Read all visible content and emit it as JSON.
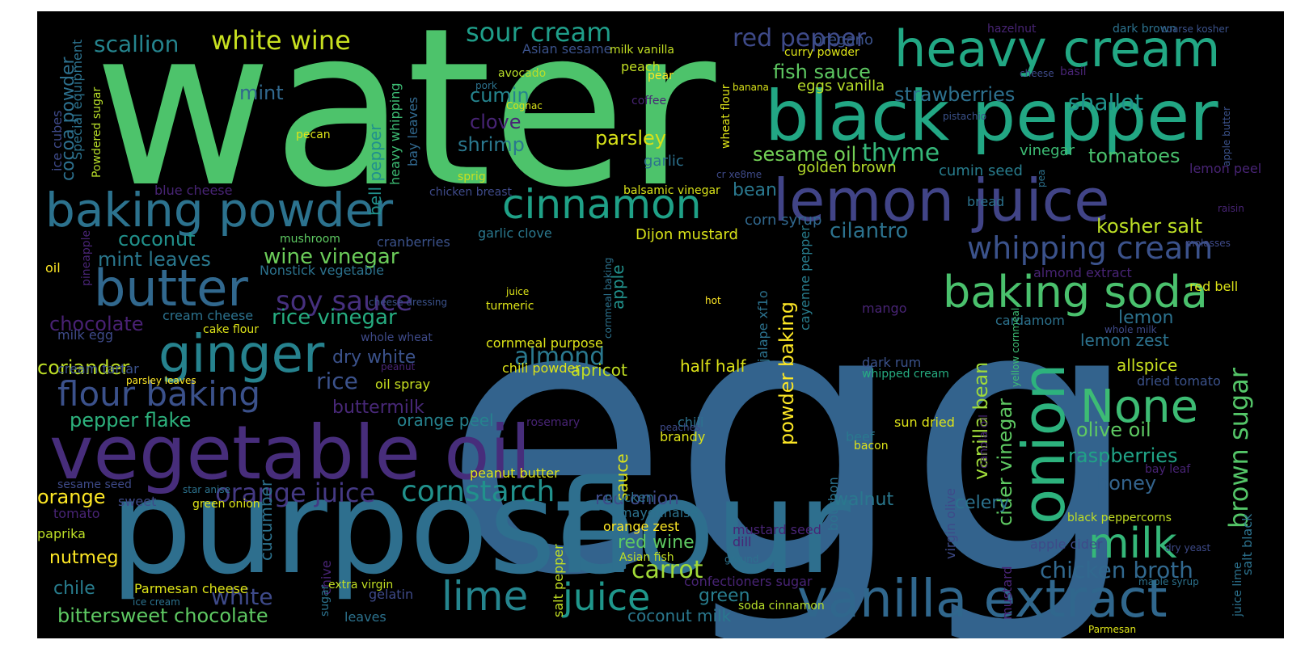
{
  "wordcloud": {
    "words": [
      {
        "text": "water",
        "color": "#4dc36b"
      },
      {
        "text": "egg",
        "color": "#33638d"
      },
      {
        "text": "purpose",
        "color": "#2e6f8e"
      },
      {
        "text": "flour",
        "color": "#2e6f8e"
      },
      {
        "text": "black pepper",
        "color": "#22a784"
      },
      {
        "text": "heavy cream",
        "color": "#22a884"
      },
      {
        "text": "lemon juice",
        "color": "#414487"
      },
      {
        "text": "vegetable oil",
        "color": "#472d7b"
      },
      {
        "text": "vanilla extract",
        "color": "#30678d"
      },
      {
        "text": "baking powder",
        "color": "#2c728e"
      },
      {
        "text": "cinnamon",
        "color": "#1fa187"
      },
      {
        "text": "baking soda",
        "color": "#4ac16d"
      },
      {
        "text": "onion",
        "color": "#2db27d"
      },
      {
        "text": "butter",
        "color": "#31688e"
      },
      {
        "text": "ginger",
        "color": "#26828e"
      },
      {
        "text": "milk",
        "color": "#35b779"
      },
      {
        "text": "None",
        "color": "#3dbc74"
      },
      {
        "text": "lime",
        "color": "#25858e"
      },
      {
        "text": "juice",
        "color": "#1f978b"
      },
      {
        "text": "flour baking",
        "color": "#3b518b"
      },
      {
        "text": "whipping cream",
        "color": "#3b528b"
      },
      {
        "text": "cornstarch",
        "color": "#21918c"
      },
      {
        "text": "soy sauce",
        "color": "#46307e"
      },
      {
        "text": "orange juice",
        "color": "#443983"
      },
      {
        "text": "sour cream",
        "color": "#1f9e89"
      },
      {
        "text": "white wine",
        "color": "#c8e020"
      },
      {
        "text": "red pepper",
        "color": "#3e4a89"
      },
      {
        "text": "brown sugar",
        "color": "#54c568"
      },
      {
        "text": "scallion",
        "color": "#25848e"
      },
      {
        "text": "thyme",
        "color": "#35b779"
      },
      {
        "text": "almond",
        "color": "#2a788e"
      },
      {
        "text": "carrot",
        "color": "#a2da37"
      },
      {
        "text": "fish sauce",
        "color": "#5ec962"
      },
      {
        "text": "shallot",
        "color": "#20938c"
      },
      {
        "text": "bittersweet chocolate",
        "color": "#5ec962"
      },
      {
        "text": "white",
        "color": "#3e4a89"
      },
      {
        "text": "chicken broth",
        "color": "#31688e"
      },
      {
        "text": "olive oil",
        "color": "#5ec962"
      },
      {
        "text": "cilantro",
        "color": "#2c728e"
      },
      {
        "text": "rice vinegar",
        "color": "#26ad81"
      },
      {
        "text": "wine vinegar",
        "color": "#6ccd5a"
      },
      {
        "text": "sesame oil",
        "color": "#73d056"
      },
      {
        "text": "strawberries",
        "color": "#2d708e"
      },
      {
        "text": "tomatoes",
        "color": "#4ac16d"
      },
      {
        "text": "powder baking",
        "color": "#fde725"
      },
      {
        "text": "cider vinegar",
        "color": "#5ec962"
      },
      {
        "text": "vanilla bean",
        "color": "#9fda3a"
      },
      {
        "text": "kosher salt",
        "color": "#bddf26"
      },
      {
        "text": "raspberries",
        "color": "#20a386"
      },
      {
        "text": "honey",
        "color": "#33638d"
      },
      {
        "text": "rice",
        "color": "#3b528b"
      },
      {
        "text": "chocolate",
        "color": "#482173"
      },
      {
        "text": "dry white",
        "color": "#3b528b"
      },
      {
        "text": "parsley",
        "color": "#d8e219"
      },
      {
        "text": "shrimp",
        "color": "#2a788e"
      },
      {
        "text": "cumin",
        "color": "#25848e"
      },
      {
        "text": "clove",
        "color": "#482475"
      },
      {
        "text": "mint",
        "color": "#31688e"
      },
      {
        "text": "coconut",
        "color": "#21918c"
      },
      {
        "text": "mint leaves",
        "color": "#2a788e"
      },
      {
        "text": "pepper flake",
        "color": "#2db27d"
      },
      {
        "text": "coriander",
        "color": "#bddf26"
      },
      {
        "text": "orange",
        "color": "#fde725"
      },
      {
        "text": "nutmeg",
        "color": "#fde725"
      },
      {
        "text": "chile",
        "color": "#287d8e"
      },
      {
        "text": "buttermilk",
        "color": "#482878"
      },
      {
        "text": "orange peel",
        "color": "#26828e"
      },
      {
        "text": "red onion",
        "color": "#3e4a89"
      },
      {
        "text": "walnut",
        "color": "#2a788e"
      },
      {
        "text": "red wine",
        "color": "#5ec962"
      },
      {
        "text": "green",
        "color": "#287d8e"
      },
      {
        "text": "coconut milk",
        "color": "#2a788e"
      },
      {
        "text": "half half",
        "color": "#dde318"
      },
      {
        "text": "apricot",
        "color": "#c2df23"
      },
      {
        "text": "bean",
        "color": "#2a788e"
      },
      {
        "text": "celery",
        "color": "#2c728e"
      },
      {
        "text": "lemon",
        "color": "#2c728e"
      },
      {
        "text": "lemon zest",
        "color": "#2c728e"
      },
      {
        "text": "allspice",
        "color": "#c8e020"
      },
      {
        "text": "cocoa powder",
        "color": "#2d708e"
      },
      {
        "text": "bell pepper",
        "color": "#21918c"
      },
      {
        "text": "apple",
        "color": "#21918c"
      },
      {
        "text": "oregano",
        "color": "#3b528b"
      },
      {
        "text": "garlic",
        "color": "#2c728e"
      },
      {
        "text": "eggs vanilla",
        "color": "#b8de29"
      },
      {
        "text": "corn syrup",
        "color": "#31688e"
      },
      {
        "text": "Dijon mustard",
        "color": "#d8e219"
      },
      {
        "text": "golden brown",
        "color": "#b5de2b"
      },
      {
        "text": "cumin seed",
        "color": "#287d8e"
      },
      {
        "text": "vinegar",
        "color": "#3dbc74"
      },
      {
        "text": "lemon peel",
        "color": "#482475"
      },
      {
        "text": "cardamom",
        "color": "#2c728e"
      },
      {
        "text": "dark rum",
        "color": "#3b528b"
      },
      {
        "text": "whipped cream",
        "color": "#26ad81"
      },
      {
        "text": "cream cheese",
        "color": "#2c728e"
      },
      {
        "text": "milk egg",
        "color": "#3e4a89"
      },
      {
        "text": "cream tartar",
        "color": "#3b528b"
      },
      {
        "text": "whole wheat",
        "color": "#3e4a89"
      },
      {
        "text": "chili powder",
        "color": "#dde318"
      },
      {
        "text": "oil spray",
        "color": "#c8e020"
      },
      {
        "text": "turmeric",
        "color": "#dde318"
      },
      {
        "text": "juice",
        "color": "#dde318"
      },
      {
        "text": "cranberries",
        "color": "#3b528b"
      },
      {
        "text": "garlic clove",
        "color": "#2a788e"
      },
      {
        "text": "mushroom",
        "color": "#5ec962"
      },
      {
        "text": "cake flour",
        "color": "#dde318"
      },
      {
        "text": "oil",
        "color": "#fde725"
      },
      {
        "text": "Nonstick vegetable",
        "color": "#2c728e"
      },
      {
        "text": "blue cheese",
        "color": "#482475"
      },
      {
        "text": "chicken breast",
        "color": "#3e4a89"
      },
      {
        "text": "balsamic vinegar",
        "color": "#d8e219"
      },
      {
        "text": "sprig",
        "color": "#c8e020"
      },
      {
        "text": "heavy whipping",
        "color": "#3dbc74"
      },
      {
        "text": "bay leaves",
        "color": "#31688e"
      },
      {
        "text": "ice cubes",
        "color": "#3e4a89"
      },
      {
        "text": "Special equipment",
        "color": "#2c728e"
      },
      {
        "text": "Powdered sugar",
        "color": "#b8de29"
      },
      {
        "text": "pecan",
        "color": "#dde318"
      },
      {
        "text": "avocado",
        "color": "#b8de29"
      },
      {
        "text": "pork",
        "color": "#2c728e"
      },
      {
        "text": "Cognac",
        "color": "#d8e219"
      },
      {
        "text": "Asian sesame",
        "color": "#3b528b"
      },
      {
        "text": "milk vanilla",
        "color": "#c2df23"
      },
      {
        "text": "peach",
        "color": "#c2df23"
      },
      {
        "text": "pear",
        "color": "#fde725"
      },
      {
        "text": "coffee",
        "color": "#482475"
      },
      {
        "text": "banana",
        "color": "#d8e219"
      },
      {
        "text": "curry powder",
        "color": "#dde318"
      },
      {
        "text": "wheat flour",
        "color": "#dde318"
      },
      {
        "text": "cr xe8me",
        "color": "#3e4a89"
      },
      {
        "text": "hazelnut",
        "color": "#482475"
      },
      {
        "text": "dark brown",
        "color": "#2c728e"
      },
      {
        "text": "coarse kosher",
        "color": "#3b528b"
      },
      {
        "text": "cheese",
        "color": "#3e4a89"
      },
      {
        "text": "basil",
        "color": "#482475"
      },
      {
        "text": "pistachio",
        "color": "#3b528b"
      },
      {
        "text": "apple butter",
        "color": "#3b528b"
      },
      {
        "text": "raisin",
        "color": "#482475"
      },
      {
        "text": "molasses",
        "color": "#3e4a89"
      },
      {
        "text": "bread",
        "color": "#2c728e"
      },
      {
        "text": "pea",
        "color": "#2c728e"
      },
      {
        "text": "almond extract",
        "color": "#482475"
      },
      {
        "text": "red bell",
        "color": "#dde318"
      },
      {
        "text": "whole milk",
        "color": "#3e4a89"
      },
      {
        "text": "mango",
        "color": "#482475"
      },
      {
        "text": "hot",
        "color": "#fde725"
      },
      {
        "text": "cheese dressing",
        "color": "#3b528b"
      },
      {
        "text": "pineapple",
        "color": "#482475"
      },
      {
        "text": "jalape xf1o",
        "color": "#2c728e"
      },
      {
        "text": "cayenne pepper",
        "color": "#287d8e"
      },
      {
        "text": "cornmeal baking",
        "color": "#2c728e"
      },
      {
        "text": "cornmeal purpose",
        "color": "#dde318"
      },
      {
        "text": "peanut",
        "color": "#482475"
      },
      {
        "text": "parsley leaves",
        "color": "#fde725"
      },
      {
        "text": "peaches",
        "color": "#3e4a89"
      },
      {
        "text": "chili",
        "color": "#2c728e"
      },
      {
        "text": "brandy",
        "color": "#dde318"
      },
      {
        "text": "sun dried",
        "color": "#dde318"
      },
      {
        "text": "beef",
        "color": "#2a788e"
      },
      {
        "text": "bacon",
        "color": "#dde318"
      },
      {
        "text": "canola oil",
        "color": "#482475"
      },
      {
        "text": "yellow cornmeal",
        "color": "#3dbc74"
      },
      {
        "text": "dried tomato",
        "color": "#3b528b"
      },
      {
        "text": "bay leaf",
        "color": "#482475"
      },
      {
        "text": "juice lime",
        "color": "#2c728e"
      },
      {
        "text": "salt black",
        "color": "#2c728e"
      },
      {
        "text": "black peppercorns",
        "color": "#c2df23"
      },
      {
        "text": "maple syrup",
        "color": "#2c728e"
      },
      {
        "text": "sesame seed",
        "color": "#3e4a89"
      },
      {
        "text": "star anise",
        "color": "#2c728e"
      },
      {
        "text": "sweet",
        "color": "#3e4a89"
      },
      {
        "text": "green onion",
        "color": "#dde318"
      },
      {
        "text": "peanut butter",
        "color": "#dde318"
      },
      {
        "text": "tomato",
        "color": "#482475"
      },
      {
        "text": "paprika",
        "color": "#bddf26"
      },
      {
        "text": "rosemary",
        "color": "#482475"
      },
      {
        "text": "sauce",
        "color": "#dde318"
      },
      {
        "text": "mayonnaise",
        "color": "#2c728e"
      },
      {
        "text": "orange zest",
        "color": "#fde725"
      },
      {
        "text": "Asian fish",
        "color": "#c2df23"
      },
      {
        "text": "mustard seed",
        "color": "#482475"
      },
      {
        "text": "dill",
        "color": "#482475"
      },
      {
        "text": "ground",
        "color": "#2c728e"
      },
      {
        "text": "bourbon",
        "color": "#2c728e"
      },
      {
        "text": "virgin olive",
        "color": "#3e4a89"
      },
      {
        "text": "mustard",
        "color": "#482475"
      },
      {
        "text": "apple cider",
        "color": "#3e4a89"
      },
      {
        "text": "cucumber",
        "color": "#2c728e"
      },
      {
        "text": "chive",
        "color": "#482475"
      },
      {
        "text": "sugar",
        "color": "#2c728e"
      },
      {
        "text": "extra virgin",
        "color": "#c2df23"
      },
      {
        "text": "salt pepper",
        "color": "#c2df23"
      },
      {
        "text": "Parmesan cheese",
        "color": "#dde318"
      },
      {
        "text": "ice cream",
        "color": "#2c728e"
      },
      {
        "text": "gelatin",
        "color": "#3e4a89"
      },
      {
        "text": "leaves",
        "color": "#2c728e"
      },
      {
        "text": "confectioners sugar",
        "color": "#482475"
      },
      {
        "text": "soda cinnamon",
        "color": "#b8de29"
      },
      {
        "text": "dry yeast",
        "color": "#3e4a89"
      },
      {
        "text": "Parmesan",
        "color": "#dde318"
      },
      {
        "text": "chicken",
        "color": "#2c728e"
      }
    ]
  }
}
